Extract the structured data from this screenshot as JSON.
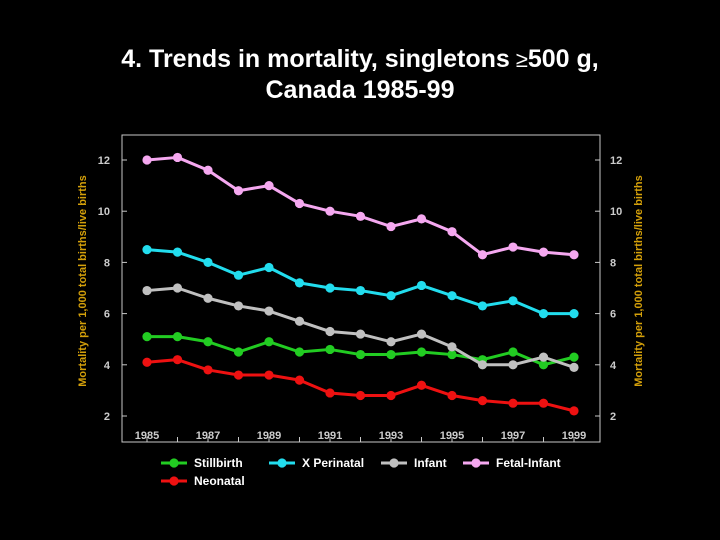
{
  "title": {
    "line1_prefix": "4. Trends in mortality, singletons",
    "symbol": "≥",
    "line1_suffix": "500 g,",
    "line2": "Canada 1985-99"
  },
  "chart_data": {
    "type": "line",
    "x": [
      1985,
      1986,
      1987,
      1988,
      1989,
      1990,
      1991,
      1992,
      1993,
      1994,
      1995,
      1996,
      1997,
      1998,
      1999
    ],
    "x_tick_labels": [
      "1985",
      "1987",
      "1989",
      "1991",
      "1993",
      "1995",
      "1997",
      "1999"
    ],
    "xlim": [
      1985,
      1999
    ],
    "ylim": [
      2,
      12
    ],
    "y_ticks": [
      2,
      4,
      6,
      8,
      10,
      12
    ],
    "ylabel": "Mortality per 1,000 total births/live births",
    "ylabel_right": "Mortality per 1,000 total births/live births",
    "grid": false,
    "legend_position": "bottom",
    "series": [
      {
        "name": "Stillbirth",
        "color": "#22cc22",
        "values": [
          5.1,
          5.1,
          4.9,
          4.5,
          4.9,
          4.5,
          4.6,
          4.4,
          4.4,
          4.5,
          4.4,
          4.2,
          4.5,
          4.0,
          4.3
        ]
      },
      {
        "name": "X Perinatal",
        "color": "#22ddee",
        "values": [
          8.5,
          8.4,
          8.0,
          7.5,
          7.8,
          7.2,
          7.0,
          6.9,
          6.7,
          7.1,
          6.7,
          6.3,
          6.5,
          6.0,
          6.0
        ]
      },
      {
        "name": "Infant",
        "color": "#c0c0c0",
        "values": [
          6.9,
          7.0,
          6.6,
          6.3,
          6.1,
          5.7,
          5.3,
          5.2,
          4.9,
          5.2,
          4.7,
          4.0,
          4.0,
          4.3,
          3.9
        ]
      },
      {
        "name": "Fetal-Infant",
        "color": "#f5a8f0",
        "values": [
          12.0,
          12.1,
          11.6,
          10.8,
          11.0,
          10.3,
          10.0,
          9.8,
          9.4,
          9.7,
          9.2,
          8.3,
          8.6,
          8.4,
          8.3
        ]
      },
      {
        "name": "Neonatal",
        "color": "#ee1111",
        "values": [
          4.1,
          4.2,
          3.8,
          3.6,
          3.6,
          3.4,
          2.9,
          2.8,
          2.8,
          3.2,
          2.8,
          2.6,
          2.5,
          2.5,
          2.2
        ]
      }
    ]
  }
}
